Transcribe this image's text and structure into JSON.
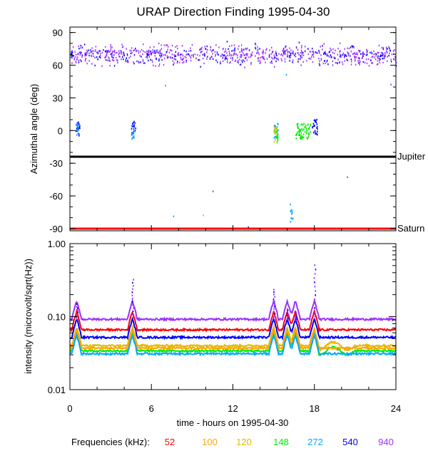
{
  "chart_data": [
    {
      "type": "scatter",
      "title": "URAP Direction Finding  1995-04-30",
      "xlabel": "",
      "ylabel": "Azimuthal angle (deg)",
      "xlim": [
        0,
        24
      ],
      "ylim": [
        -92,
        95
      ],
      "x_ticks": [
        0,
        6,
        12,
        18,
        24
      ],
      "y_ticks": [
        90,
        60,
        30,
        0,
        -30,
        -60,
        -90
      ],
      "y_tick_labels": [
        "90",
        "60",
        "30",
        "0",
        "-30",
        "-60",
        "-90"
      ],
      "reference_lines": [
        {
          "label": "Jupiter",
          "y": -24,
          "color": "#000000"
        },
        {
          "label": "Saturn",
          "y": -90,
          "color": "#ff0000"
        }
      ],
      "series": [
        {
          "name": "940",
          "color": "#9b30ff",
          "band": {
            "x": [
              0,
              24
            ],
            "y_center": 70,
            "y_spread": 9
          }
        },
        {
          "name": "540",
          "color": "#0000ff",
          "clusters": [
            {
              "x": [
                0.4,
                0.7
              ],
              "y_center": 2
            },
            {
              "x": [
                4.5,
                4.8
              ],
              "y_center": 3
            },
            {
              "x": [
                17.8,
                18.2
              ],
              "y_center": 4
            }
          ]
        },
        {
          "name": "272",
          "color": "#00aaff",
          "clusters": [
            {
              "x": [
                0.4,
                0.6
              ],
              "y_center": 3
            },
            {
              "x": [
                4.5,
                4.7
              ],
              "y_center": 0
            },
            {
              "x": [
                15.0,
                15.3
              ],
              "y_center": 1
            },
            {
              "x": [
                16.2,
                16.4
              ],
              "y_center": -78
            }
          ]
        },
        {
          "name": "148",
          "color": "#00ee00",
          "clusters": [
            {
              "x": [
                16.6,
                17.7
              ],
              "y_center": 0
            },
            {
              "x": [
                15.0,
                15.3
              ],
              "y_center": -4
            }
          ]
        },
        {
          "name": "120",
          "color": "#e6b800",
          "clusters": [
            {
              "x": [
                15.0,
                15.2
              ],
              "y_center": -3
            }
          ]
        }
      ]
    },
    {
      "type": "line",
      "title": "",
      "xlabel": "time - hours on 1995-04-30",
      "ylabel": "intensity (microvolt/sqrt(Hz))",
      "xlim": [
        0,
        24
      ],
      "ylim": [
        0.01,
        1.0
      ],
      "yscale": "log",
      "x_ticks": [
        0,
        6,
        12,
        18,
        24
      ],
      "x_tick_labels": [
        "0",
        "6",
        "12",
        "18",
        "24"
      ],
      "y_ticks": [
        1.0,
        0.1,
        0.01
      ],
      "y_tick_labels": [
        "1.00",
        "0.10",
        "0.01"
      ],
      "bursts": [
        0.5,
        4.6,
        15.0,
        16.0,
        16.6,
        18.0
      ],
      "series": [
        {
          "name": "940",
          "color": "#9b30ff",
          "baseline": 0.092
        },
        {
          "name": "52",
          "color": "#ff0000",
          "baseline": 0.066
        },
        {
          "name": "540",
          "color": "#0000ff",
          "baseline": 0.052
        },
        {
          "name": "120",
          "color": "#e6b800",
          "baseline": 0.04
        },
        {
          "name": "148",
          "color": "#00ee00",
          "baseline": 0.034
        },
        {
          "name": "100",
          "color": "#ffa500",
          "baseline": 0.037
        },
        {
          "name": "272",
          "color": "#00aaff",
          "baseline": 0.031
        }
      ]
    }
  ],
  "legend": {
    "label": "Frequencies (kHz):",
    "items": [
      {
        "text": "52",
        "color": "#ff0000"
      },
      {
        "text": "100",
        "color": "#ffa500"
      },
      {
        "text": "120",
        "color": "#e6b800"
      },
      {
        "text": "148",
        "color": "#00ee00"
      },
      {
        "text": "272",
        "color": "#00aaff"
      },
      {
        "text": "540",
        "color": "#0000ff"
      },
      {
        "text": "940",
        "color": "#9b30ff"
      }
    ]
  }
}
